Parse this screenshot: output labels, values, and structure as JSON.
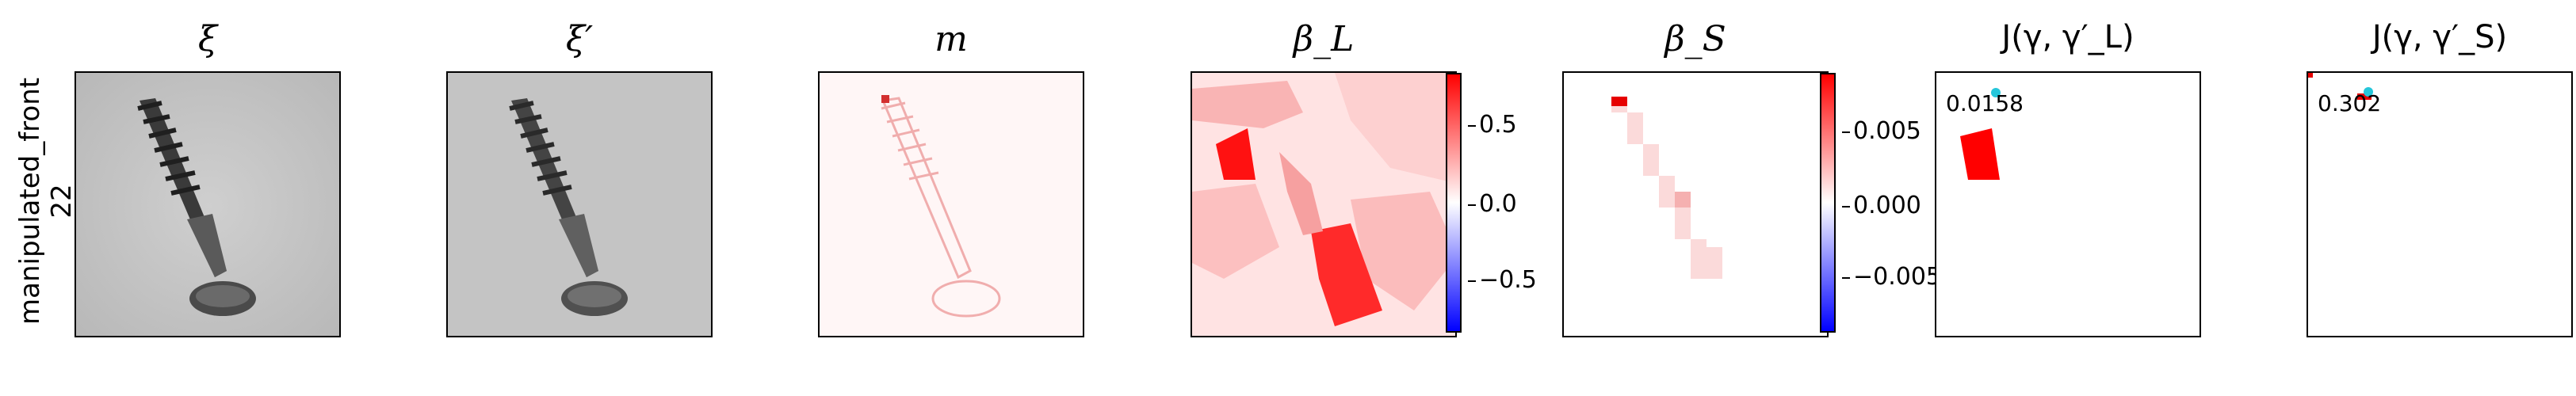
{
  "row_label": {
    "line1": "manipulated_front",
    "line2": "22"
  },
  "panels": [
    {
      "title": "ξ"
    },
    {
      "title": "ξ′"
    },
    {
      "title": "m"
    },
    {
      "title": "β_L"
    },
    {
      "title": "β_S"
    },
    {
      "title": "J(γ, γ′_L)"
    },
    {
      "title": "J(γ, γ′_S)"
    }
  ],
  "colorbar_L": {
    "ticks": [
      "0.5",
      "0.0",
      "−0.5"
    ],
    "colors": {
      "pos": "#ff0000",
      "neg": "#0000ff"
    }
  },
  "colorbar_S": {
    "ticks": [
      "0.005",
      "0.000",
      "−0.005"
    ]
  },
  "scores": {
    "J_L": "0.0158",
    "J_S": "0.302"
  }
}
